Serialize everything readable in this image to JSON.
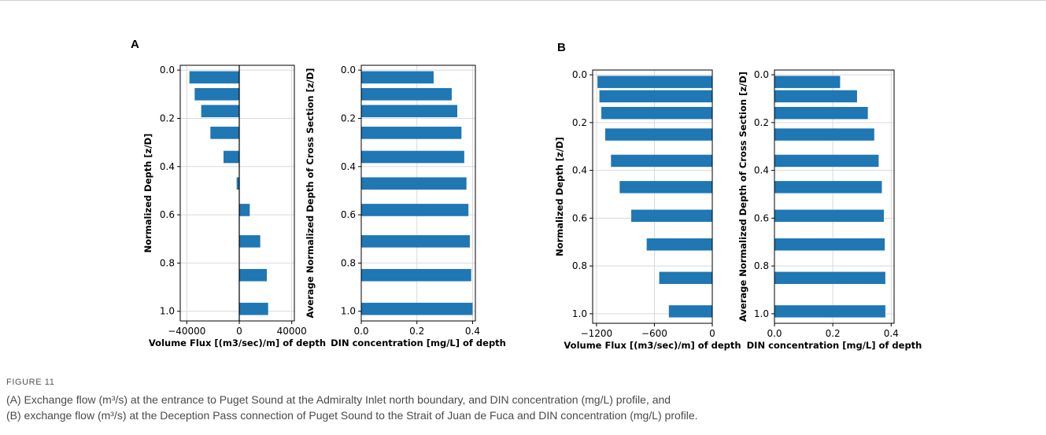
{
  "figure": {
    "panel_labels": [
      "A",
      "B"
    ],
    "caption_label": "FIGURE 11",
    "caption_lines": [
      "(A) Exchange flow (m³/s) at the entrance to Puget Sound at the Admiralty Inlet north boundary, and DIN concentration (mg/L) profile, and",
      "(B) exchange flow (m³/s) at the Deception Pass connection of Puget Sound to the Strait of Juan de Fuca and DIN concentration (mg/L) profile."
    ],
    "bar_color": "#1f77b4"
  },
  "chart_data": [
    {
      "panel": "A",
      "type": "bar",
      "orientation": "horizontal",
      "xlabel": "Volume Flux [(m3/sec)/m] of depth",
      "ylabel": "Normalized Depth [z/D]",
      "xlim": [
        -45000,
        42000
      ],
      "xticks": [
        -40000,
        0,
        40000
      ],
      "xtick_labels": [
        "−40000",
        "0",
        "40000"
      ],
      "ylim": [
        1.04,
        -0.02
      ],
      "yticks": [
        0.0,
        0.2,
        0.4,
        0.6,
        0.8,
        1.0
      ],
      "ytick_labels": [
        "0.0",
        "0.2",
        "0.4",
        "0.6",
        "0.8",
        "1.0"
      ],
      "zero_line": true,
      "grid": true,
      "depths": [
        0.03,
        0.1,
        0.17,
        0.26,
        0.36,
        0.47,
        0.58,
        0.71,
        0.85,
        0.99
      ],
      "values": [
        -38000,
        -34000,
        -29000,
        -22000,
        -12000,
        -2000,
        8000,
        16000,
        21000,
        22000
      ]
    },
    {
      "panel": "A",
      "type": "bar",
      "orientation": "horizontal",
      "xlabel": "DIN concentration [mg/L] of depth",
      "ylabel": "Average Normalized Depth of Cross Section [z/D]",
      "xlim": [
        0,
        0.41
      ],
      "xticks": [
        0.0,
        0.2,
        0.4
      ],
      "xtick_labels": [
        "0.0",
        "0.2",
        "0.4"
      ],
      "ylim": [
        1.04,
        -0.02
      ],
      "yticks": [
        0.0,
        0.2,
        0.4,
        0.6,
        0.8,
        1.0
      ],
      "ytick_labels": [
        "0.0",
        "0.2",
        "0.4",
        "0.6",
        "0.8",
        "1.0"
      ],
      "zero_line": false,
      "grid": true,
      "depths": [
        0.03,
        0.1,
        0.17,
        0.26,
        0.36,
        0.47,
        0.58,
        0.71,
        0.85,
        0.99
      ],
      "values": [
        0.26,
        0.325,
        0.345,
        0.36,
        0.37,
        0.378,
        0.385,
        0.39,
        0.395,
        0.4
      ]
    },
    {
      "panel": "B",
      "type": "bar",
      "orientation": "horizontal",
      "xlabel": "Volume Flux [(m3/sec)/m] of depth",
      "ylabel": "Normalized Depth [z/D]",
      "xlim": [
        -1240,
        0
      ],
      "xticks": [
        -1200,
        -600,
        0
      ],
      "xtick_labels": [
        "−1200",
        "−600",
        "0"
      ],
      "ylim": [
        1.04,
        -0.02
      ],
      "yticks": [
        0.0,
        0.2,
        0.4,
        0.6,
        0.8,
        1.0
      ],
      "ytick_labels": [
        "0.0",
        "0.2",
        "0.4",
        "0.6",
        "0.8",
        "1.0"
      ],
      "zero_line": false,
      "grid": true,
      "depths": [
        0.03,
        0.09,
        0.16,
        0.25,
        0.36,
        0.47,
        0.59,
        0.71,
        0.85,
        0.99
      ],
      "values": [
        -1190,
        -1170,
        -1150,
        -1110,
        -1050,
        -960,
        -840,
        -680,
        -550,
        -450
      ]
    },
    {
      "panel": "B",
      "type": "bar",
      "orientation": "horizontal",
      "xlabel": "DIN concentration [mg/L] of depth",
      "ylabel": "Average Normalized Depth of Cross Section [z/D]",
      "xlim": [
        0,
        0.41
      ],
      "xticks": [
        0.0,
        0.2,
        0.4
      ],
      "xtick_labels": [
        "0.0",
        "0.2",
        "0.4"
      ],
      "ylim": [
        1.04,
        -0.02
      ],
      "yticks": [
        0.0,
        0.2,
        0.4,
        0.6,
        0.8,
        1.0
      ],
      "ytick_labels": [
        "0.0",
        "0.2",
        "0.4",
        "0.6",
        "0.8",
        "1.0"
      ],
      "zero_line": false,
      "grid": true,
      "depths": [
        0.03,
        0.09,
        0.16,
        0.25,
        0.36,
        0.47,
        0.59,
        0.71,
        0.85,
        0.99
      ],
      "values": [
        0.225,
        0.283,
        0.32,
        0.342,
        0.357,
        0.368,
        0.375,
        0.378,
        0.38,
        0.38
      ]
    }
  ]
}
